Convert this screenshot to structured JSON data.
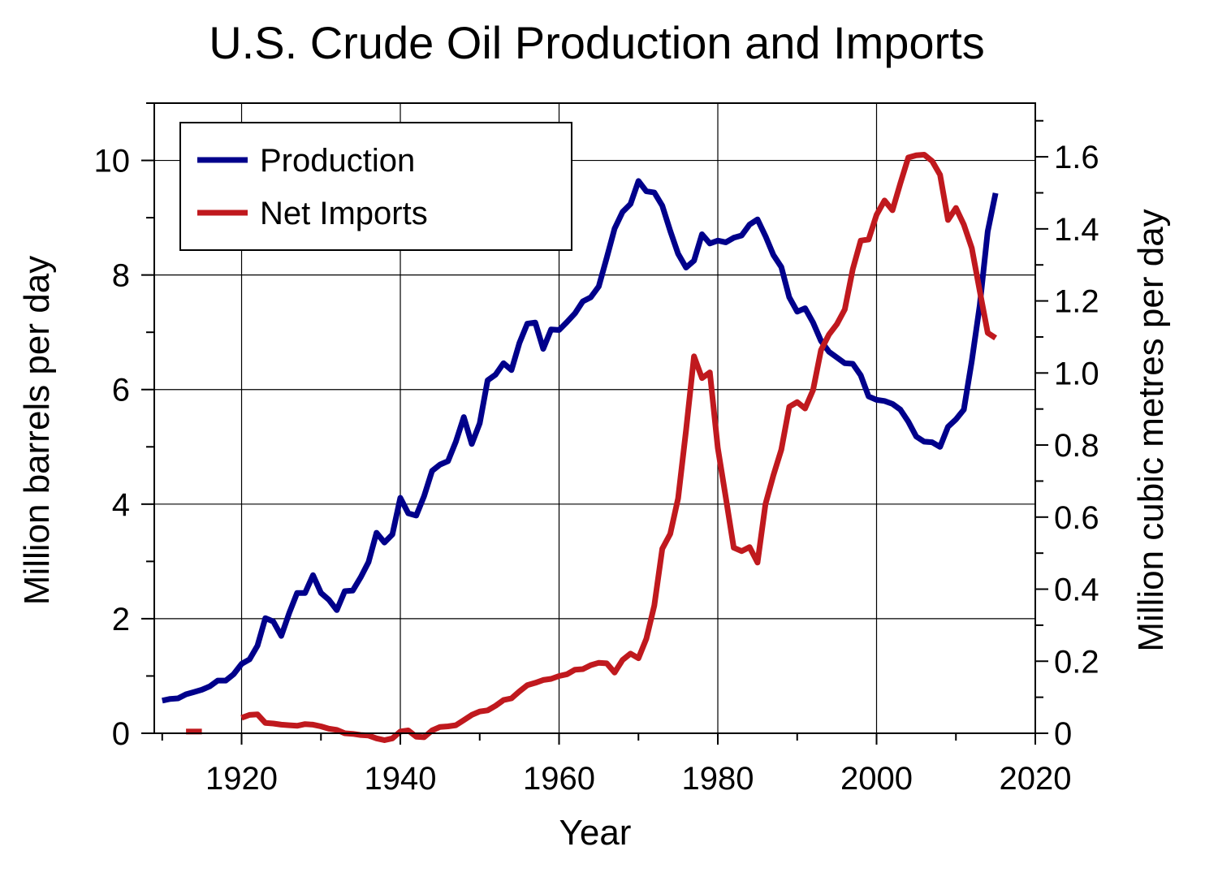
{
  "chart_data": {
    "type": "line",
    "title": "U.S. Crude Oil Production and Imports",
    "xlabel": "Year",
    "ylabel": "Million barrels per day",
    "y2label": "Million cubic metres per day",
    "xlim": [
      1909,
      2020
    ],
    "ylim": [
      0,
      11
    ],
    "y2lim": [
      0,
      1.749
    ],
    "x_ticks": [
      1920,
      1940,
      1960,
      1980,
      2000,
      2020
    ],
    "x_tick_labels": [
      "1920",
      "1940",
      "1960",
      "1980",
      "2000",
      "2020"
    ],
    "y_ticks": [
      0,
      2,
      4,
      6,
      8,
      10
    ],
    "y_tick_labels": [
      "0",
      "2",
      "4",
      "6",
      "8",
      "10"
    ],
    "y2_ticks": [
      0,
      0.2,
      0.4,
      0.6,
      0.8,
      1.0,
      1.2,
      1.4,
      1.6
    ],
    "y2_tick_labels": [
      "0",
      "0.2",
      "0.4",
      "0.6",
      "0.8",
      "1.0",
      "1.2",
      "1.4",
      "1.6"
    ],
    "grid": true,
    "legend_position": "top-left",
    "series": [
      {
        "name": "Production",
        "color": "#00008B",
        "points": [
          [
            1910,
            0.57
          ],
          [
            1911,
            0.6
          ],
          [
            1912,
            0.61
          ],
          [
            1913,
            0.68
          ],
          [
            1914,
            0.72
          ],
          [
            1915,
            0.76
          ],
          [
            1916,
            0.82
          ],
          [
            1917,
            0.92
          ],
          [
            1918,
            0.92
          ],
          [
            1919,
            1.03
          ],
          [
            1920,
            1.21
          ],
          [
            1921,
            1.29
          ],
          [
            1922,
            1.53
          ],
          [
            1923,
            2.01
          ],
          [
            1924,
            1.95
          ],
          [
            1925,
            1.7
          ],
          [
            1926,
            2.1
          ],
          [
            1927,
            2.45
          ],
          [
            1928,
            2.45
          ],
          [
            1929,
            2.76
          ],
          [
            1930,
            2.45
          ],
          [
            1931,
            2.33
          ],
          [
            1932,
            2.15
          ],
          [
            1933,
            2.48
          ],
          [
            1934,
            2.49
          ],
          [
            1935,
            2.72
          ],
          [
            1936,
            2.99
          ],
          [
            1937,
            3.5
          ],
          [
            1938,
            3.33
          ],
          [
            1939,
            3.47
          ],
          [
            1940,
            4.11
          ],
          [
            1941,
            3.84
          ],
          [
            1942,
            3.8
          ],
          [
            1943,
            4.14
          ],
          [
            1944,
            4.58
          ],
          [
            1945,
            4.69
          ],
          [
            1946,
            4.75
          ],
          [
            1947,
            5.09
          ],
          [
            1948,
            5.52
          ],
          [
            1949,
            5.05
          ],
          [
            1950,
            5.41
          ],
          [
            1951,
            6.16
          ],
          [
            1952,
            6.26
          ],
          [
            1953,
            6.46
          ],
          [
            1954,
            6.34
          ],
          [
            1955,
            6.81
          ],
          [
            1956,
            7.15
          ],
          [
            1957,
            7.17
          ],
          [
            1958,
            6.71
          ],
          [
            1959,
            7.05
          ],
          [
            1960,
            7.04
          ],
          [
            1961,
            7.18
          ],
          [
            1962,
            7.33
          ],
          [
            1963,
            7.54
          ],
          [
            1964,
            7.61
          ],
          [
            1965,
            7.8
          ],
          [
            1966,
            8.3
          ],
          [
            1967,
            8.81
          ],
          [
            1968,
            9.1
          ],
          [
            1969,
            9.24
          ],
          [
            1970,
            9.64
          ],
          [
            1971,
            9.46
          ],
          [
            1972,
            9.44
          ],
          [
            1973,
            9.21
          ],
          [
            1974,
            8.77
          ],
          [
            1975,
            8.37
          ],
          [
            1976,
            8.13
          ],
          [
            1977,
            8.25
          ],
          [
            1978,
            8.71
          ],
          [
            1979,
            8.55
          ],
          [
            1980,
            8.6
          ],
          [
            1981,
            8.57
          ],
          [
            1982,
            8.65
          ],
          [
            1983,
            8.69
          ],
          [
            1984,
            8.88
          ],
          [
            1985,
            8.97
          ],
          [
            1986,
            8.68
          ],
          [
            1987,
            8.35
          ],
          [
            1988,
            8.14
          ],
          [
            1989,
            7.61
          ],
          [
            1990,
            7.36
          ],
          [
            1991,
            7.42
          ],
          [
            1992,
            7.17
          ],
          [
            1993,
            6.85
          ],
          [
            1994,
            6.66
          ],
          [
            1995,
            6.56
          ],
          [
            1996,
            6.46
          ],
          [
            1997,
            6.45
          ],
          [
            1998,
            6.25
          ],
          [
            1999,
            5.88
          ],
          [
            2000,
            5.82
          ],
          [
            2001,
            5.8
          ],
          [
            2002,
            5.75
          ],
          [
            2003,
            5.65
          ],
          [
            2004,
            5.44
          ],
          [
            2005,
            5.18
          ],
          [
            2006,
            5.09
          ],
          [
            2007,
            5.08
          ],
          [
            2008,
            5.0
          ],
          [
            2009,
            5.35
          ],
          [
            2010,
            5.48
          ],
          [
            2011,
            5.65
          ],
          [
            2012,
            6.5
          ],
          [
            2013,
            7.47
          ],
          [
            2014,
            8.76
          ],
          [
            2015,
            9.43
          ]
        ]
      },
      {
        "name": "Net Imports",
        "color": "#C0191E",
        "segments": [
          [
            [
              1913,
              0.03
            ],
            [
              1914,
              0.03
            ],
            [
              1915,
              0.03
            ]
          ],
          [
            [
              1920,
              0.27
            ],
            [
              1921,
              0.32
            ],
            [
              1922,
              0.33
            ],
            [
              1923,
              0.18
            ],
            [
              1924,
              0.17
            ],
            [
              1925,
              0.15
            ],
            [
              1926,
              0.14
            ],
            [
              1927,
              0.13
            ],
            [
              1928,
              0.16
            ],
            [
              1929,
              0.15
            ],
            [
              1930,
              0.12
            ],
            [
              1931,
              0.08
            ],
            [
              1932,
              0.06
            ],
            [
              1933,
              0.0
            ],
            [
              1934,
              -0.01
            ],
            [
              1935,
              -0.03
            ],
            [
              1936,
              -0.04
            ],
            [
              1937,
              -0.09
            ],
            [
              1938,
              -0.12
            ],
            [
              1939,
              -0.09
            ],
            [
              1940,
              0.03
            ],
            [
              1941,
              0.05
            ],
            [
              1942,
              -0.06
            ],
            [
              1943,
              -0.07
            ],
            [
              1944,
              0.05
            ],
            [
              1945,
              0.11
            ],
            [
              1946,
              0.12
            ],
            [
              1947,
              0.14
            ],
            [
              1948,
              0.23
            ],
            [
              1949,
              0.32
            ],
            [
              1950,
              0.38
            ],
            [
              1951,
              0.4
            ],
            [
              1952,
              0.48
            ],
            [
              1953,
              0.58
            ],
            [
              1954,
              0.61
            ],
            [
              1955,
              0.73
            ],
            [
              1956,
              0.84
            ],
            [
              1957,
              0.88
            ],
            [
              1958,
              0.93
            ],
            [
              1959,
              0.95
            ],
            [
              1960,
              1.0
            ],
            [
              1961,
              1.03
            ],
            [
              1962,
              1.11
            ],
            [
              1963,
              1.12
            ],
            [
              1964,
              1.19
            ],
            [
              1965,
              1.23
            ],
            [
              1966,
              1.22
            ],
            [
              1967,
              1.06
            ],
            [
              1968,
              1.28
            ],
            [
              1969,
              1.39
            ],
            [
              1970,
              1.31
            ],
            [
              1971,
              1.65
            ],
            [
              1972,
              2.23
            ],
            [
              1973,
              3.22
            ],
            [
              1974,
              3.48
            ],
            [
              1975,
              4.1
            ],
            [
              1976,
              5.29
            ],
            [
              1977,
              6.58
            ],
            [
              1978,
              6.2
            ],
            [
              1979,
              6.3
            ],
            [
              1980,
              4.98
            ],
            [
              1981,
              4.12
            ],
            [
              1982,
              3.24
            ],
            [
              1983,
              3.18
            ],
            [
              1984,
              3.25
            ],
            [
              1985,
              2.98
            ],
            [
              1986,
              4.0
            ],
            [
              1987,
              4.5
            ],
            [
              1988,
              4.95
            ],
            [
              1989,
              5.7
            ],
            [
              1990,
              5.78
            ],
            [
              1991,
              5.67
            ],
            [
              1992,
              5.99
            ],
            [
              1993,
              6.69
            ],
            [
              1994,
              6.96
            ],
            [
              1995,
              7.14
            ],
            [
              1996,
              7.4
            ],
            [
              1997,
              8.1
            ],
            [
              1998,
              8.6
            ],
            [
              1999,
              8.62
            ],
            [
              2000,
              9.05
            ],
            [
              2001,
              9.3
            ],
            [
              2002,
              9.13
            ],
            [
              2003,
              9.6
            ],
            [
              2004,
              10.05
            ],
            [
              2005,
              10.09
            ],
            [
              2006,
              10.1
            ],
            [
              2007,
              9.99
            ],
            [
              2008,
              9.75
            ],
            [
              2009,
              8.96
            ],
            [
              2010,
              9.17
            ],
            [
              2011,
              8.88
            ],
            [
              2012,
              8.47
            ],
            [
              2013,
              7.72
            ],
            [
              2014,
              6.99
            ],
            [
              2015,
              6.9
            ]
          ]
        ]
      }
    ]
  }
}
